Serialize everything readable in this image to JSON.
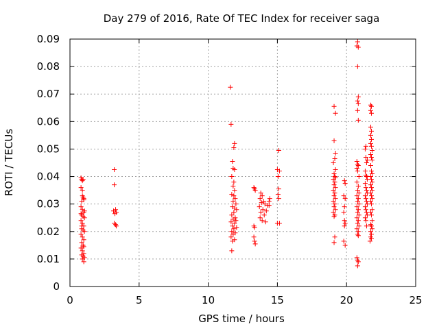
{
  "chart_data": {
    "type": "scatter",
    "title": "Day 279 of 2016, Rate Of TEC Index for receiver saga",
    "xlabel": "GPS time / hours",
    "ylabel": "ROTI / TECUs",
    "xlim": [
      0,
      25
    ],
    "ylim": [
      0,
      0.09
    ],
    "x_ticks": [
      0,
      5,
      10,
      15,
      20,
      25
    ],
    "x_tick_labels": [
      "0",
      "5",
      "10",
      "15",
      "20",
      "25"
    ],
    "y_ticks": [
      0,
      0.01,
      0.02,
      0.03,
      0.04,
      0.05,
      0.06,
      0.07,
      0.08,
      0.09
    ],
    "y_tick_labels": [
      "0",
      "0.01",
      "0.02",
      "0.03",
      "0.04",
      "0.05",
      "0.06",
      "0.07",
      "0.08",
      "0.09"
    ],
    "grid": true,
    "marker": "+",
    "series": [
      {
        "name": "ROTI",
        "color": "#ff0000",
        "points": [
          [
            0.8,
            0.0395
          ],
          [
            0.85,
            0.039
          ],
          [
            0.9,
            0.0385
          ],
          [
            0.95,
            0.039
          ],
          [
            0.8,
            0.036
          ],
          [
            0.9,
            0.033
          ],
          [
            0.95,
            0.0325
          ],
          [
            1.0,
            0.032
          ],
          [
            0.85,
            0.031
          ],
          [
            1.0,
            0.0315
          ],
          [
            0.8,
            0.029
          ],
          [
            0.9,
            0.028
          ],
          [
            1.0,
            0.027
          ],
          [
            0.85,
            0.026
          ],
          [
            0.95,
            0.0255
          ],
          [
            1.05,
            0.025
          ],
          [
            0.8,
            0.024
          ],
          [
            0.9,
            0.023
          ],
          [
            1.0,
            0.022
          ],
          [
            0.85,
            0.021
          ],
          [
            0.95,
            0.0205
          ],
          [
            1.05,
            0.02
          ],
          [
            0.8,
            0.019
          ],
          [
            0.9,
            0.018
          ],
          [
            1.0,
            0.017
          ],
          [
            0.85,
            0.016
          ],
          [
            0.95,
            0.015
          ],
          [
            1.0,
            0.0145
          ],
          [
            0.8,
            0.014
          ],
          [
            0.9,
            0.013
          ],
          [
            1.0,
            0.012
          ],
          [
            0.85,
            0.0115
          ],
          [
            0.95,
            0.011
          ],
          [
            1.05,
            0.0105
          ],
          [
            0.9,
            0.01
          ],
          [
            1.0,
            0.009
          ],
          [
            0.8,
            0.0265
          ],
          [
            1.05,
            0.0275
          ],
          [
            0.9,
            0.035
          ],
          [
            0.85,
            0.022
          ],
          [
            3.2,
            0.0425
          ],
          [
            3.2,
            0.037
          ],
          [
            3.15,
            0.0275
          ],
          [
            3.3,
            0.028
          ],
          [
            3.35,
            0.027
          ],
          [
            3.25,
            0.0265
          ],
          [
            3.2,
            0.023
          ],
          [
            3.3,
            0.0225
          ],
          [
            3.35,
            0.022
          ],
          [
            11.6,
            0.0725
          ],
          [
            11.65,
            0.059
          ],
          [
            11.9,
            0.052
          ],
          [
            11.85,
            0.0505
          ],
          [
            11.75,
            0.0455
          ],
          [
            11.8,
            0.043
          ],
          [
            11.9,
            0.0425
          ],
          [
            11.7,
            0.04
          ],
          [
            11.85,
            0.038
          ],
          [
            11.8,
            0.0365
          ],
          [
            11.9,
            0.035
          ],
          [
            11.7,
            0.0335
          ],
          [
            11.85,
            0.033
          ],
          [
            11.95,
            0.032
          ],
          [
            11.8,
            0.031
          ],
          [
            12.0,
            0.03
          ],
          [
            11.75,
            0.029
          ],
          [
            11.9,
            0.0285
          ],
          [
            12.05,
            0.028
          ],
          [
            11.85,
            0.027
          ],
          [
            11.7,
            0.026
          ],
          [
            11.95,
            0.025
          ],
          [
            11.8,
            0.0245
          ],
          [
            12.0,
            0.024
          ],
          [
            11.65,
            0.0235
          ],
          [
            11.9,
            0.023
          ],
          [
            11.75,
            0.022
          ],
          [
            12.05,
            0.0215
          ],
          [
            11.85,
            0.021
          ],
          [
            11.7,
            0.02
          ],
          [
            11.95,
            0.0195
          ],
          [
            11.8,
            0.019
          ],
          [
            11.65,
            0.018
          ],
          [
            11.9,
            0.017
          ],
          [
            11.75,
            0.0165
          ],
          [
            11.7,
            0.013
          ],
          [
            13.3,
            0.036
          ],
          [
            13.35,
            0.0355
          ],
          [
            13.4,
            0.035
          ],
          [
            13.8,
            0.034
          ],
          [
            13.9,
            0.033
          ],
          [
            13.75,
            0.032
          ],
          [
            14.0,
            0.031
          ],
          [
            13.85,
            0.0305
          ],
          [
            14.1,
            0.03
          ],
          [
            14.3,
            0.0295
          ],
          [
            13.7,
            0.029
          ],
          [
            13.95,
            0.028
          ],
          [
            14.2,
            0.0275
          ],
          [
            13.8,
            0.027
          ],
          [
            14.05,
            0.026
          ],
          [
            13.75,
            0.025
          ],
          [
            13.9,
            0.024
          ],
          [
            14.15,
            0.0235
          ],
          [
            13.3,
            0.022
          ],
          [
            13.35,
            0.0215
          ],
          [
            13.3,
            0.018
          ],
          [
            13.35,
            0.0165
          ],
          [
            13.4,
            0.0155
          ],
          [
            14.4,
            0.031
          ],
          [
            14.45,
            0.032
          ],
          [
            14.4,
            0.0295
          ],
          [
            15.1,
            0.0495
          ],
          [
            15.0,
            0.0425
          ],
          [
            15.15,
            0.042
          ],
          [
            15.05,
            0.04
          ],
          [
            15.1,
            0.0355
          ],
          [
            15.05,
            0.0335
          ],
          [
            15.1,
            0.032
          ],
          [
            15.0,
            0.023
          ],
          [
            15.15,
            0.023
          ],
          [
            19.1,
            0.0655
          ],
          [
            19.2,
            0.063
          ],
          [
            19.1,
            0.053
          ],
          [
            19.2,
            0.0485
          ],
          [
            19.15,
            0.0465
          ],
          [
            19.05,
            0.045
          ],
          [
            19.2,
            0.0425
          ],
          [
            19.1,
            0.041
          ],
          [
            19.15,
            0.04
          ],
          [
            19.2,
            0.0395
          ],
          [
            19.05,
            0.039
          ],
          [
            19.15,
            0.038
          ],
          [
            19.1,
            0.037
          ],
          [
            19.2,
            0.036
          ],
          [
            19.05,
            0.035
          ],
          [
            19.15,
            0.034
          ],
          [
            19.1,
            0.033
          ],
          [
            19.2,
            0.032
          ],
          [
            19.05,
            0.031
          ],
          [
            19.15,
            0.03
          ],
          [
            19.1,
            0.029
          ],
          [
            19.2,
            0.028
          ],
          [
            19.05,
            0.027
          ],
          [
            19.15,
            0.026
          ],
          [
            19.1,
            0.0255
          ],
          [
            19.15,
            0.018
          ],
          [
            19.1,
            0.016
          ],
          [
            19.85,
            0.0385
          ],
          [
            19.9,
            0.0375
          ],
          [
            19.8,
            0.033
          ],
          [
            19.9,
            0.032
          ],
          [
            19.85,
            0.029
          ],
          [
            19.8,
            0.027
          ],
          [
            19.85,
            0.024
          ],
          [
            19.9,
            0.023
          ],
          [
            19.85,
            0.022
          ],
          [
            19.8,
            0.0165
          ],
          [
            19.9,
            0.015
          ],
          [
            20.8,
            0.089
          ],
          [
            20.75,
            0.0875
          ],
          [
            20.85,
            0.087
          ],
          [
            20.8,
            0.08
          ],
          [
            20.85,
            0.069
          ],
          [
            20.8,
            0.0675
          ],
          [
            20.85,
            0.0665
          ],
          [
            20.8,
            0.064
          ],
          [
            20.85,
            0.0605
          ],
          [
            20.75,
            0.0455
          ],
          [
            20.8,
            0.0445
          ],
          [
            20.85,
            0.044
          ],
          [
            20.75,
            0.043
          ],
          [
            20.8,
            0.042
          ],
          [
            20.9,
            0.04
          ],
          [
            20.75,
            0.038
          ],
          [
            20.85,
            0.0365
          ],
          [
            20.8,
            0.035
          ],
          [
            20.9,
            0.034
          ],
          [
            20.75,
            0.033
          ],
          [
            20.85,
            0.032
          ],
          [
            20.8,
            0.031
          ],
          [
            20.9,
            0.03
          ],
          [
            20.75,
            0.029
          ],
          [
            20.85,
            0.028
          ],
          [
            20.8,
            0.027
          ],
          [
            20.9,
            0.026
          ],
          [
            20.75,
            0.025
          ],
          [
            20.85,
            0.024
          ],
          [
            20.8,
            0.023
          ],
          [
            20.9,
            0.022
          ],
          [
            20.75,
            0.021
          ],
          [
            20.85,
            0.02
          ],
          [
            20.8,
            0.019
          ],
          [
            20.85,
            0.0185
          ],
          [
            20.75,
            0.0105
          ],
          [
            20.8,
            0.0095
          ],
          [
            20.85,
            0.009
          ],
          [
            20.8,
            0.0075
          ],
          [
            21.4,
            0.051
          ],
          [
            21.35,
            0.05
          ],
          [
            21.4,
            0.047
          ],
          [
            21.5,
            0.046
          ],
          [
            21.45,
            0.045
          ],
          [
            21.35,
            0.042
          ],
          [
            21.4,
            0.0405
          ],
          [
            21.45,
            0.04
          ],
          [
            21.5,
            0.039
          ],
          [
            21.35,
            0.0375
          ],
          [
            21.4,
            0.036
          ],
          [
            21.45,
            0.035
          ],
          [
            21.5,
            0.034
          ],
          [
            21.35,
            0.033
          ],
          [
            21.4,
            0.032
          ],
          [
            21.45,
            0.031
          ],
          [
            21.5,
            0.03
          ],
          [
            21.35,
            0.029
          ],
          [
            21.4,
            0.028
          ],
          [
            21.45,
            0.027
          ],
          [
            21.5,
            0.026
          ],
          [
            21.35,
            0.025
          ],
          [
            21.4,
            0.024
          ],
          [
            21.45,
            0.022
          ],
          [
            21.75,
            0.066
          ],
          [
            21.8,
            0.0655
          ],
          [
            21.75,
            0.064
          ],
          [
            21.8,
            0.063
          ],
          [
            21.75,
            0.058
          ],
          [
            21.8,
            0.0565
          ],
          [
            21.75,
            0.055
          ],
          [
            21.8,
            0.0535
          ],
          [
            21.75,
            0.052
          ],
          [
            21.8,
            0.051
          ],
          [
            21.85,
            0.0495
          ],
          [
            21.75,
            0.048
          ],
          [
            21.8,
            0.047
          ],
          [
            21.85,
            0.046
          ],
          [
            21.75,
            0.044
          ],
          [
            21.8,
            0.042
          ],
          [
            21.85,
            0.041
          ],
          [
            21.75,
            0.04
          ],
          [
            21.8,
            0.039
          ],
          [
            21.85,
            0.038
          ],
          [
            21.75,
            0.037
          ],
          [
            21.8,
            0.036
          ],
          [
            21.85,
            0.035
          ],
          [
            21.75,
            0.034
          ],
          [
            21.8,
            0.033
          ],
          [
            21.85,
            0.032
          ],
          [
            21.75,
            0.031
          ],
          [
            21.8,
            0.03
          ],
          [
            21.85,
            0.028
          ],
          [
            21.75,
            0.027
          ],
          [
            21.8,
            0.026
          ],
          [
            21.85,
            0.024
          ],
          [
            21.75,
            0.0225
          ],
          [
            21.8,
            0.022
          ],
          [
            21.85,
            0.021
          ],
          [
            21.75,
            0.02
          ],
          [
            21.8,
            0.019
          ],
          [
            21.75,
            0.018
          ],
          [
            21.8,
            0.0175
          ],
          [
            21.7,
            0.0165
          ]
        ]
      }
    ]
  }
}
